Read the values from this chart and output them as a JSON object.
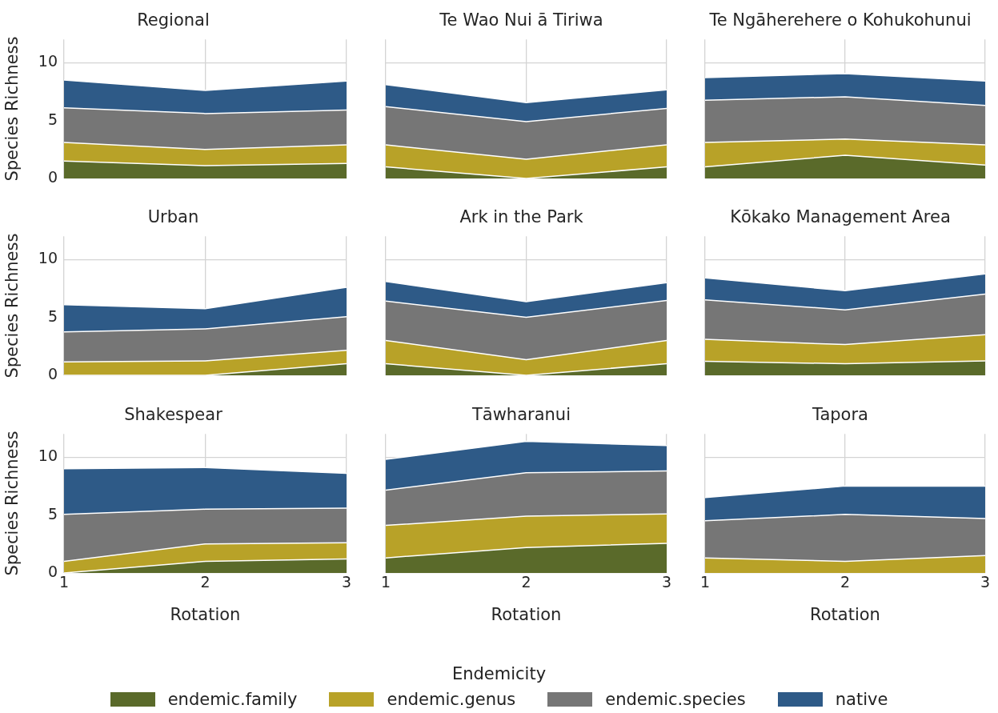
{
  "chart_data": [
    {
      "type": "area",
      "title": "Regional",
      "ylabel": "Species Richness",
      "x": [
        1,
        2,
        3
      ],
      "xlim": [
        1,
        3
      ],
      "xticks": [
        1,
        2,
        3
      ],
      "ylim": [
        0,
        12
      ],
      "yticks": [
        0,
        5,
        10
      ],
      "stacked": true,
      "grid": true,
      "tick_labels": "y",
      "legend": "bottom",
      "legend_title": "Endemicity",
      "series": [
        {
          "name": "endemic.family",
          "color": "#5a6a2a",
          "values": [
            1.5,
            1.1,
            1.3
          ]
        },
        {
          "name": "endemic.genus",
          "color": "#b8a228",
          "values": [
            1.6,
            1.4,
            1.6
          ]
        },
        {
          "name": "endemic.species",
          "color": "#767676",
          "values": [
            3.0,
            3.1,
            3.0
          ]
        },
        {
          "name": "native",
          "color": "#2e5a87",
          "values": [
            2.4,
            2.0,
            2.5
          ]
        }
      ]
    },
    {
      "type": "area",
      "title": "Te Wao Nui ā Tiriwa",
      "x": [
        1,
        2,
        3
      ],
      "xlim": [
        1,
        3
      ],
      "xticks": [
        1,
        2,
        3
      ],
      "ylim": [
        0,
        12
      ],
      "yticks": [
        0,
        5,
        10
      ],
      "stacked": true,
      "grid": true,
      "tick_labels": false,
      "series": [
        {
          "color": "#5a6a2a",
          "values": [
            1.0,
            0,
            1.0
          ]
        },
        {
          "color": "#b8a228",
          "values": [
            1.9,
            1.65,
            1.9
          ]
        },
        {
          "color": "#767676",
          "values": [
            3.3,
            3.25,
            3.15
          ]
        },
        {
          "color": "#2e5a87",
          "values": [
            1.9,
            1.65,
            1.6
          ]
        }
      ]
    },
    {
      "type": "area",
      "title": "Te Ngāherehere o Kohukohunui",
      "x": [
        1,
        2,
        3
      ],
      "xlim": [
        1,
        3
      ],
      "xticks": [
        1,
        2,
        3
      ],
      "ylim": [
        0,
        12
      ],
      "yticks": [
        0,
        5,
        10
      ],
      "stacked": true,
      "grid": true,
      "tick_labels": false,
      "series": [
        {
          "color": "#5a6a2a",
          "values": [
            1.0,
            2.0,
            1.15
          ]
        },
        {
          "color": "#b8a228",
          "values": [
            2.1,
            1.4,
            1.75
          ]
        },
        {
          "color": "#767676",
          "values": [
            3.65,
            3.65,
            3.4
          ]
        },
        {
          "color": "#2e5a87",
          "values": [
            1.95,
            2.0,
            2.1
          ]
        }
      ]
    },
    {
      "type": "area",
      "title": "Urban",
      "ylabel": "Species Richness",
      "x": [
        1,
        2,
        3
      ],
      "xlim": [
        1,
        3
      ],
      "xticks": [
        1,
        2,
        3
      ],
      "ylim": [
        0,
        12
      ],
      "yticks": [
        0,
        5,
        10
      ],
      "stacked": true,
      "grid": true,
      "tick_labels": "y",
      "series": [
        {
          "color": "#5a6a2a",
          "values": [
            0,
            0,
            1.0
          ]
        },
        {
          "color": "#b8a228",
          "values": [
            1.15,
            1.25,
            1.15
          ]
        },
        {
          "color": "#767676",
          "values": [
            2.6,
            2.75,
            2.9
          ]
        },
        {
          "color": "#2e5a87",
          "values": [
            2.35,
            1.75,
            2.55
          ]
        }
      ]
    },
    {
      "type": "area",
      "title": "Ark in the Park",
      "x": [
        1,
        2,
        3
      ],
      "xlim": [
        1,
        3
      ],
      "xticks": [
        1,
        2,
        3
      ],
      "ylim": [
        0,
        12
      ],
      "yticks": [
        0,
        5,
        10
      ],
      "stacked": true,
      "grid": true,
      "tick_labels": false,
      "series": [
        {
          "color": "#5a6a2a",
          "values": [
            1.0,
            0,
            1.0
          ]
        },
        {
          "color": "#b8a228",
          "values": [
            2.0,
            1.35,
            2.0
          ]
        },
        {
          "color": "#767676",
          "values": [
            3.4,
            3.65,
            3.45
          ]
        },
        {
          "color": "#2e5a87",
          "values": [
            1.7,
            1.35,
            1.55
          ]
        }
      ]
    },
    {
      "type": "area",
      "title": "Kōkako Management Area",
      "x": [
        1,
        2,
        3
      ],
      "xlim": [
        1,
        3
      ],
      "xticks": [
        1,
        2,
        3
      ],
      "ylim": [
        0,
        12
      ],
      "yticks": [
        0,
        5,
        10
      ],
      "stacked": true,
      "grid": true,
      "tick_labels": false,
      "series": [
        {
          "color": "#5a6a2a",
          "values": [
            1.2,
            1.0,
            1.25
          ]
        },
        {
          "color": "#b8a228",
          "values": [
            1.9,
            1.65,
            2.25
          ]
        },
        {
          "color": "#767676",
          "values": [
            3.4,
            3.0,
            3.5
          ]
        },
        {
          "color": "#2e5a87",
          "values": [
            1.9,
            1.65,
            1.75
          ]
        }
      ]
    },
    {
      "type": "area",
      "title": "Shakespear",
      "xlabel": "Rotation",
      "ylabel": "Species Richness",
      "x": [
        1,
        2,
        3
      ],
      "xlim": [
        1,
        3
      ],
      "xticks": [
        1,
        2,
        3
      ],
      "ylim": [
        0,
        12
      ],
      "yticks": [
        0,
        5,
        10
      ],
      "stacked": true,
      "grid": true,
      "series": [
        {
          "color": "#5a6a2a",
          "values": [
            0,
            1.0,
            1.2
          ]
        },
        {
          "color": "#b8a228",
          "values": [
            1.0,
            1.5,
            1.4
          ]
        },
        {
          "color": "#767676",
          "values": [
            4.05,
            3.0,
            3.0
          ]
        },
        {
          "color": "#2e5a87",
          "values": [
            3.95,
            3.6,
            3.0
          ]
        }
      ]
    },
    {
      "type": "area",
      "title": "Tāwharanui",
      "xlabel": "Rotation",
      "x": [
        1,
        2,
        3
      ],
      "xlim": [
        1,
        3
      ],
      "xticks": [
        1,
        2,
        3
      ],
      "ylim": [
        0,
        12
      ],
      "yticks": [
        0,
        5,
        10
      ],
      "stacked": true,
      "grid": true,
      "tick_labels": "x",
      "series": [
        {
          "color": "#5a6a2a",
          "values": [
            1.3,
            2.2,
            2.55
          ]
        },
        {
          "color": "#b8a228",
          "values": [
            2.8,
            2.7,
            2.55
          ]
        },
        {
          "color": "#767676",
          "values": [
            3.05,
            3.75,
            3.7
          ]
        },
        {
          "color": "#2e5a87",
          "values": [
            2.65,
            2.7,
            2.2
          ]
        }
      ]
    },
    {
      "type": "area",
      "title": "Tapora",
      "xlabel": "Rotation",
      "x": [
        1,
        2,
        3
      ],
      "xlim": [
        1,
        3
      ],
      "xticks": [
        1,
        2,
        3
      ],
      "ylim": [
        0,
        12
      ],
      "yticks": [
        0,
        5,
        10
      ],
      "stacked": true,
      "grid": true,
      "tick_labels": "x",
      "series": [
        {
          "color": "#b8a228",
          "values": [
            1.3,
            1.0,
            1.5
          ]
        },
        {
          "color": "#767676",
          "values": [
            3.2,
            4.05,
            3.2
          ]
        },
        {
          "color": "#2e5a87",
          "values": [
            2.0,
            2.45,
            2.8
          ]
        }
      ]
    }
  ]
}
